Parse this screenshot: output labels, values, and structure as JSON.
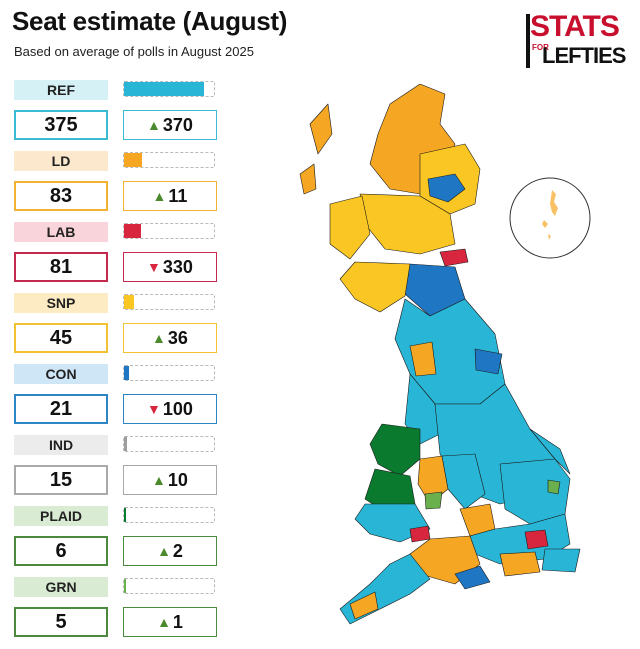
{
  "header": {
    "title": "Seat estimate (August)",
    "subtitle": "Based on average of polls in August 2025"
  },
  "logo": {
    "stats": "STATS",
    "for": "FOR",
    "lefties": "LEFTIES"
  },
  "chart_data": {
    "type": "bar",
    "title": "Seat estimate (August)",
    "subtitle": "Based on average of polls in August 2025",
    "total_seats": 650,
    "parties": [
      {
        "label": "REF",
        "seats": "375",
        "seats_value": 375,
        "change": "370",
        "direction": "up",
        "color": "#29b6d6",
        "label_bg": "#d6f1f6",
        "box_color": "#3bbad3"
      },
      {
        "label": "LD",
        "seats": "83",
        "seats_value": 83,
        "change": "11",
        "direction": "up",
        "color": "#f5a623",
        "label_bg": "#fce8cd",
        "box_color": "#f2b233"
      },
      {
        "label": "LAB",
        "seats": "81",
        "seats_value": 81,
        "change": "330",
        "direction": "down",
        "color": "#d7263d",
        "label_bg": "#f9d4da",
        "box_color": "#c42a4d"
      },
      {
        "label": "SNP",
        "seats": "45",
        "seats_value": 45,
        "change": "36",
        "direction": "up",
        "color": "#f9c623",
        "label_bg": "#fdebc4",
        "box_color": "#f3c233"
      },
      {
        "label": "CON",
        "seats": "21",
        "seats_value": 21,
        "change": "100",
        "direction": "down",
        "color": "#1f77c4",
        "label_bg": "#cfe6f7",
        "box_color": "#2e85c4"
      },
      {
        "label": "IND",
        "seats": "15",
        "seats_value": 15,
        "change": "10",
        "direction": "up",
        "color": "#9e9e9e",
        "label_bg": "#ececec",
        "box_color": "#a9a9a9"
      },
      {
        "label": "PLAID",
        "seats": "6",
        "seats_value": 6,
        "change": "2",
        "direction": "up",
        "color": "#0a7a2e",
        "label_bg": "#d9ecd3",
        "box_color": "#4b8a3c"
      },
      {
        "label": "GRN",
        "seats": "5",
        "seats_value": 5,
        "change": "1",
        "direction": "up",
        "color": "#6ab04c",
        "label_bg": "#d9ecd3",
        "box_color": "#4b8a3c"
      }
    ]
  },
  "map_colors": {
    "reform": "#29b6d6",
    "libdem": "#f5a623",
    "labour": "#d7263d",
    "snp": "#f9c623",
    "conservative": "#1f77c4",
    "plaid": "#0a7a2e",
    "green": "#6ab04c",
    "independent": "#8c8c8c"
  }
}
